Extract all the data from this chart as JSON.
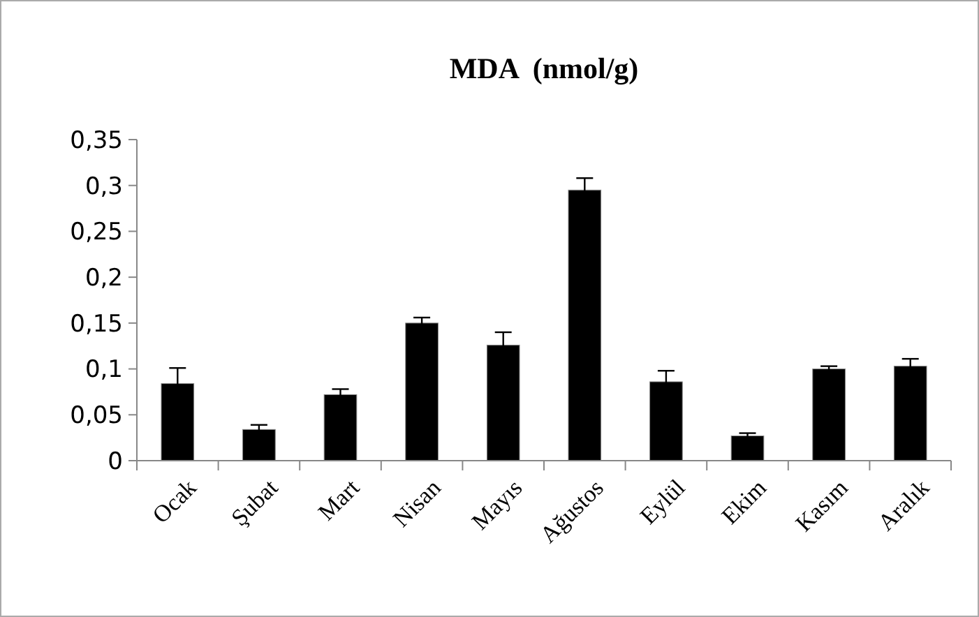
{
  "chart_data": {
    "type": "bar",
    "title": "MDA  (nmol/g)",
    "categories": [
      "Ocak",
      "Şubat",
      "Mart",
      "Nisan",
      "Mayıs",
      "Ağustos",
      "Eylül",
      "Ekim",
      "Kasım",
      "Aralık"
    ],
    "values": [
      0.084,
      0.034,
      0.072,
      0.15,
      0.126,
      0.295,
      0.086,
      0.027,
      0.1,
      0.103
    ],
    "errors": [
      0.017,
      0.005,
      0.006,
      0.006,
      0.014,
      0.013,
      0.012,
      0.003,
      0.003,
      0.008
    ],
    "color": "#000000",
    "ylim": [
      0,
      0.35
    ],
    "yticks": [
      {
        "value": 0,
        "label": "0"
      },
      {
        "value": 0.05,
        "label": "0,05"
      },
      {
        "value": 0.1,
        "label": "0,1"
      },
      {
        "value": 0.15,
        "label": "0,15"
      },
      {
        "value": 0.2,
        "label": "0,2"
      },
      {
        "value": 0.25,
        "label": "0,25"
      },
      {
        "value": 0.3,
        "label": "0,3"
      },
      {
        "value": 0.35,
        "label": "0,35"
      }
    ],
    "grid": false
  }
}
